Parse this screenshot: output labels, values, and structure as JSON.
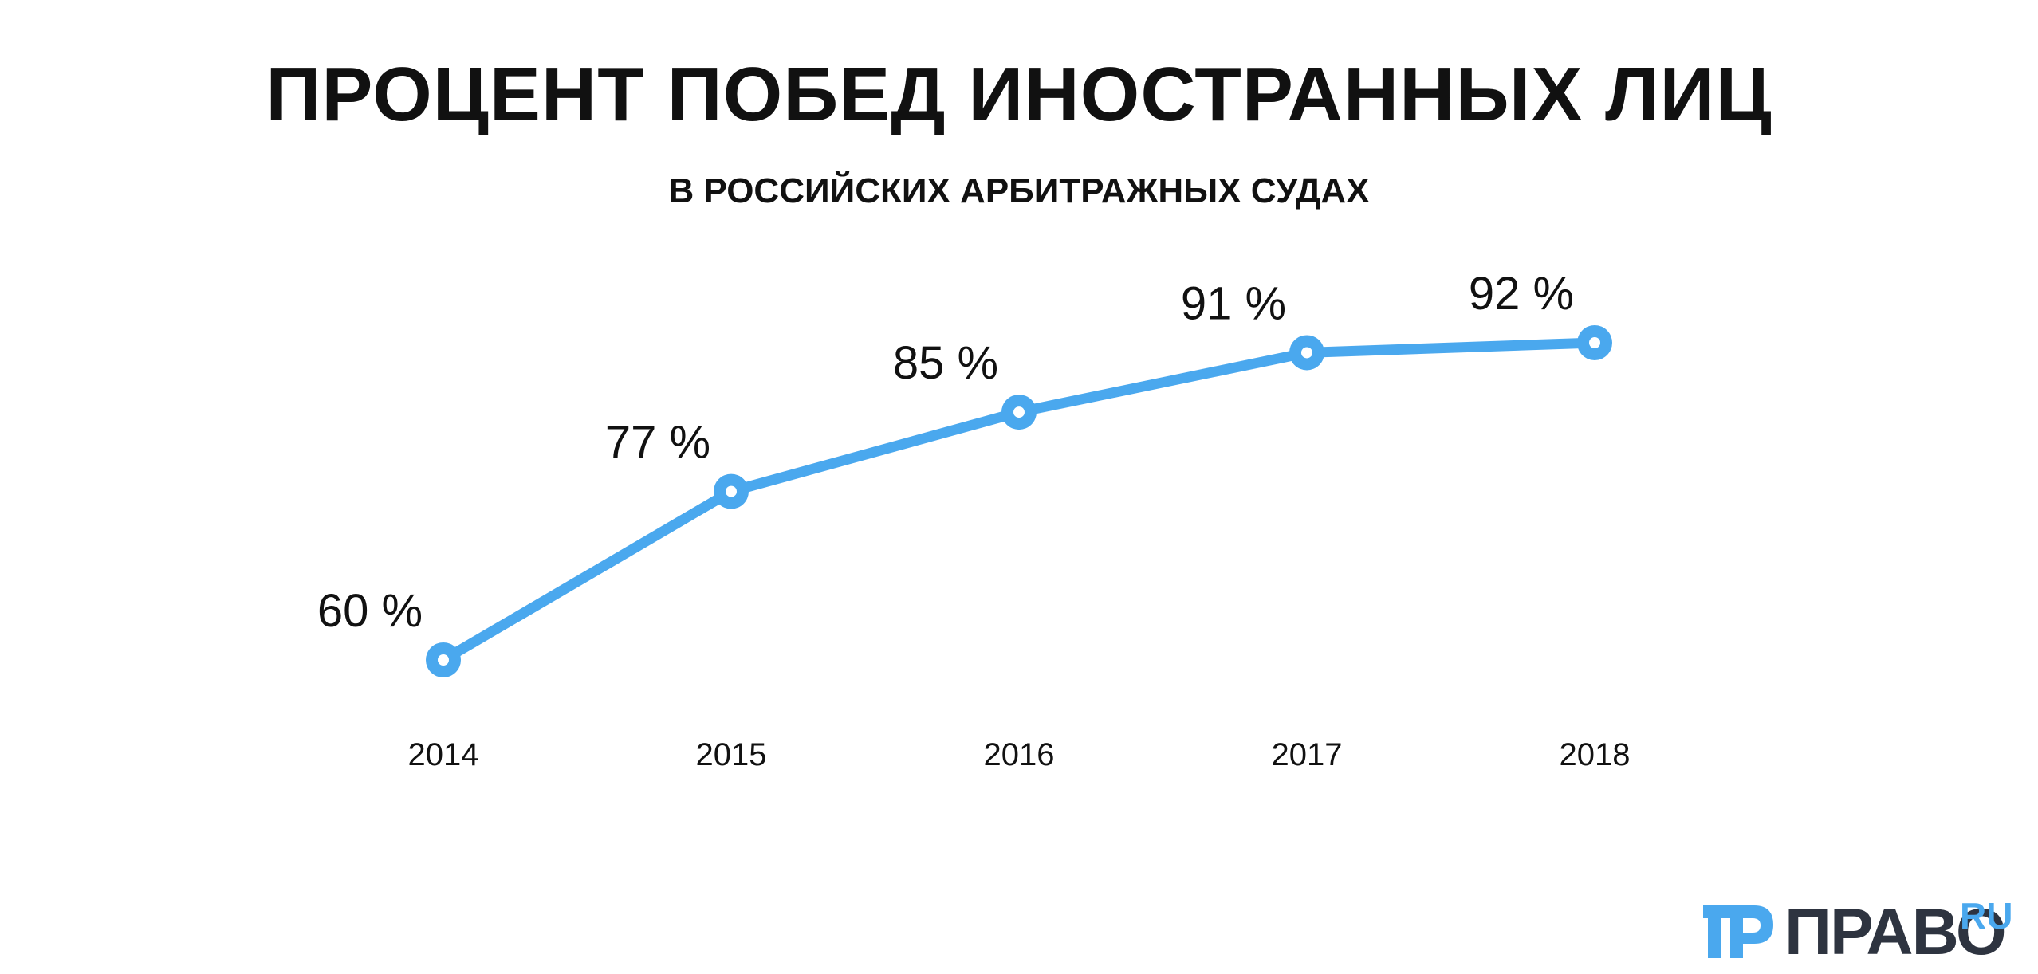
{
  "chart_data": {
    "type": "line",
    "title": "ПРОЦЕНТ ПОБЕД ИНОСТРАННЫХ ЛИЦ",
    "subtitle": "В РОССИЙСКИХ АРБИТРАЖНЫХ СУДАХ",
    "x": [
      "2014",
      "2015",
      "2016",
      "2017",
      "2018"
    ],
    "values": [
      60,
      77,
      85,
      91,
      92
    ],
    "data_labels": [
      "60 %",
      "77 %",
      "85 %",
      "91 %",
      "92 %"
    ],
    "unit": "%",
    "xlabel": "",
    "ylabel": "",
    "grid": false,
    "legend": "none",
    "color": "#4aa8ee"
  },
  "logo": {
    "word": "ПРАВО",
    "suffix": "RU",
    "icon": "pravo-logo-icon",
    "color_main": "#2e3440",
    "color_accent": "#4aa8ee"
  }
}
